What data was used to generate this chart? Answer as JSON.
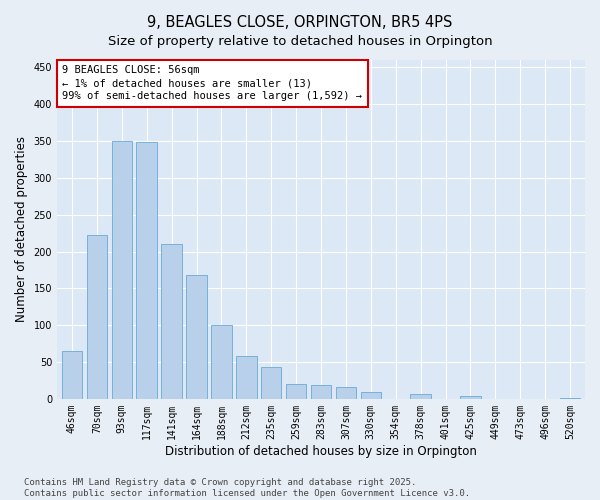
{
  "title": "9, BEAGLES CLOSE, ORPINGTON, BR5 4PS",
  "subtitle": "Size of property relative to detached houses in Orpington",
  "xlabel": "Distribution of detached houses by size in Orpington",
  "ylabel": "Number of detached properties",
  "categories": [
    "46sqm",
    "70sqm",
    "93sqm",
    "117sqm",
    "141sqm",
    "164sqm",
    "188sqm",
    "212sqm",
    "235sqm",
    "259sqm",
    "283sqm",
    "307sqm",
    "330sqm",
    "354sqm",
    "378sqm",
    "401sqm",
    "425sqm",
    "449sqm",
    "473sqm",
    "496sqm",
    "520sqm"
  ],
  "values": [
    65,
    222,
    350,
    348,
    210,
    168,
    100,
    58,
    43,
    20,
    19,
    16,
    9,
    0,
    6,
    0,
    4,
    0,
    0,
    0,
    1
  ],
  "bar_color": "#b8d0ea",
  "bar_edge_color": "#6aaad4",
  "background_color": "#e8eef5",
  "plot_bg_color": "#dce8f5",
  "annotation_box_color": "#ffffff",
  "annotation_border_color": "#cc0000",
  "annotation_text": "9 BEAGLES CLOSE: 56sqm\n← 1% of detached houses are smaller (13)\n99% of semi-detached houses are larger (1,592) →",
  "annotation_fontsize": 7.5,
  "title_fontsize": 10.5,
  "subtitle_fontsize": 9.5,
  "xlabel_fontsize": 8.5,
  "ylabel_fontsize": 8.5,
  "tick_fontsize": 7,
  "footer_text": "Contains HM Land Registry data © Crown copyright and database right 2025.\nContains public sector information licensed under the Open Government Licence v3.0.",
  "footer_fontsize": 6.5,
  "ylim": [
    0,
    460
  ],
  "yticks": [
    0,
    50,
    100,
    150,
    200,
    250,
    300,
    350,
    400,
    450
  ],
  "grid_color": "#ffffff",
  "spine_color": "#aaaaaa"
}
